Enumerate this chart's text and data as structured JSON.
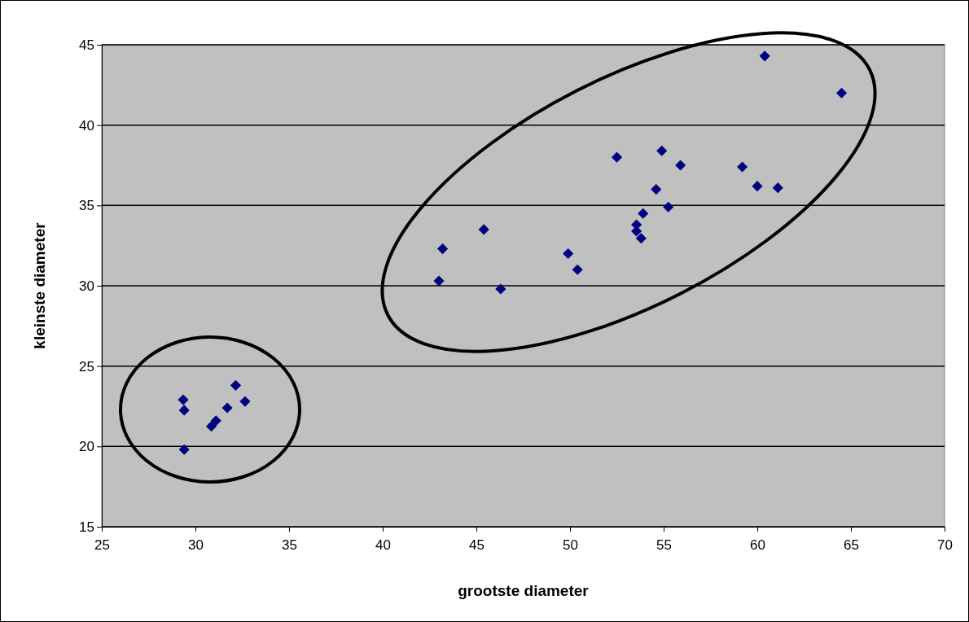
{
  "chart_data": {
    "type": "scatter",
    "xlabel": "grootste diameter",
    "ylabel": "kleinste diameter",
    "xlim": [
      25,
      70
    ],
    "xticks": [
      25,
      30,
      35,
      40,
      45,
      50,
      55,
      60,
      65,
      70
    ],
    "ylim": [
      15,
      45
    ],
    "yticks": [
      15,
      20,
      25,
      30,
      35,
      40,
      45
    ],
    "grid": "y",
    "marker": "diamond",
    "series": [
      {
        "color": "#000080",
        "x": [
          29.35,
          29.4,
          29.4,
          30.85,
          31.1,
          31.7,
          32.15,
          32.65,
          43.0,
          43.2,
          45.4,
          46.3,
          49.9,
          50.4,
          52.5,
          53.55,
          53.55,
          53.8,
          53.9,
          54.6,
          54.9,
          55.25,
          55.9,
          59.2,
          60.0,
          61.1,
          60.4,
          64.5
        ],
        "values": [
          22.9,
          22.25,
          19.8,
          21.25,
          21.6,
          22.4,
          23.8,
          22.8,
          30.3,
          32.3,
          33.5,
          29.8,
          32.0,
          31.0,
          38.0,
          33.8,
          33.4,
          32.95,
          34.5,
          36.0,
          38.4,
          34.9,
          37.5,
          37.4,
          36.2,
          36.1,
          44.3,
          42.0
        ]
      }
    ]
  }
}
